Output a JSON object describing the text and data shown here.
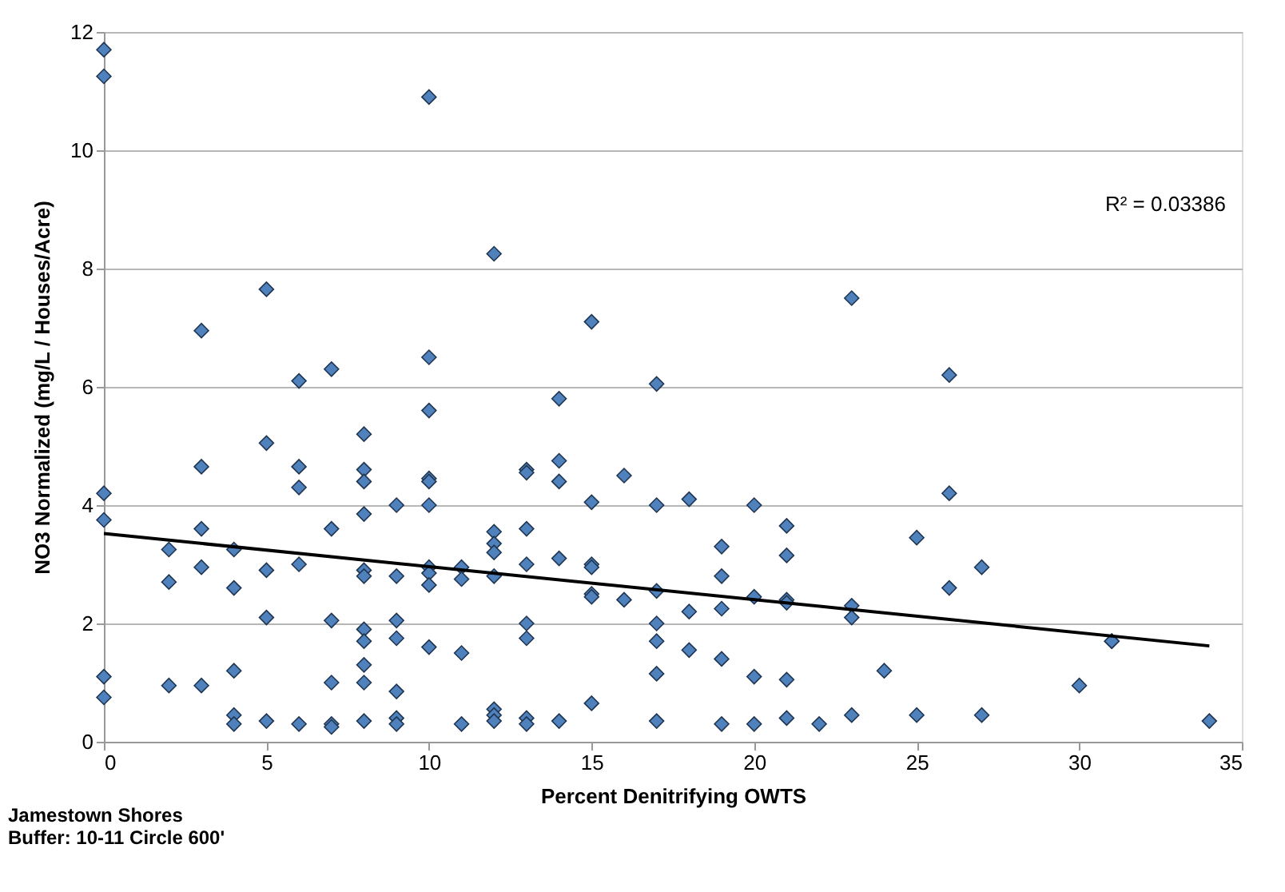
{
  "chart_data": {
    "type": "scatter",
    "xlabel": "Percent Denitrifying OWTS",
    "ylabel": "NO3 Normalized (mg/L / Houses/Acre)",
    "xlim": [
      0,
      35
    ],
    "xticks": [
      0,
      5,
      10,
      15,
      20,
      25,
      30,
      35
    ],
    "ylim": [
      0,
      12
    ],
    "yticks": [
      0,
      2,
      4,
      6,
      8,
      10,
      12
    ],
    "grid": "y",
    "legend": false,
    "annotations": [
      "R² = 0.03386",
      "Jamestown Shores",
      "Buffer: 10-11 Circle 600'"
    ],
    "series": [
      {
        "color": "#4f81bd",
        "marker": "diamond",
        "x": [
          0,
          0,
          0,
          0,
          0,
          0,
          2,
          2,
          2,
          3,
          3,
          3,
          3,
          3,
          4,
          4,
          4,
          4,
          4,
          5,
          5,
          5,
          5,
          5,
          6,
          6,
          6,
          6,
          6,
          7,
          7,
          7,
          7,
          7,
          7,
          8,
          8,
          8,
          8,
          8,
          8,
          8,
          8,
          8,
          8,
          8,
          9,
          9,
          9,
          9,
          9,
          9,
          9,
          10,
          10,
          10,
          10,
          10,
          10,
          10,
          10,
          10,
          10,
          11,
          11,
          11,
          11,
          12,
          12,
          12,
          12,
          12,
          12,
          12,
          12,
          13,
          13,
          13,
          13,
          13,
          13,
          13,
          13,
          14,
          14,
          14,
          14,
          14,
          15,
          15,
          15,
          15,
          15,
          15,
          15,
          16,
          16,
          17,
          17,
          17,
          17,
          17,
          17,
          17,
          18,
          18,
          18,
          19,
          19,
          19,
          19,
          19,
          20,
          20,
          20,
          20,
          21,
          21,
          21,
          21,
          21,
          21,
          22,
          23,
          23,
          23,
          23,
          24,
          25,
          25,
          26,
          26,
          26,
          27,
          27,
          30,
          31,
          31,
          34
        ],
        "values": [
          11.7,
          11.25,
          4.2,
          3.75,
          1.1,
          0.75,
          3.25,
          2.7,
          0.95,
          6.95,
          4.65,
          3.6,
          2.95,
          0.95,
          3.25,
          2.6,
          1.2,
          0.45,
          0.3,
          7.65,
          5.05,
          2.9,
          2.1,
          0.35,
          6.1,
          4.65,
          4.3,
          3.0,
          0.3,
          6.3,
          3.6,
          2.05,
          1.0,
          0.3,
          0.25,
          5.2,
          4.6,
          4.4,
          3.85,
          2.9,
          2.8,
          1.9,
          1.7,
          1.3,
          1.0,
          0.35,
          4.0,
          2.8,
          2.05,
          1.75,
          0.85,
          0.4,
          0.3,
          10.9,
          6.5,
          5.6,
          4.45,
          4.4,
          4.0,
          2.95,
          2.85,
          2.65,
          1.6,
          2.95,
          2.75,
          1.5,
          0.3,
          8.25,
          3.55,
          3.35,
          3.2,
          2.8,
          0.55,
          0.45,
          0.35,
          4.6,
          4.55,
          3.6,
          3.0,
          2.0,
          1.75,
          0.4,
          0.3,
          5.8,
          4.75,
          4.4,
          3.1,
          0.35,
          7.1,
          4.05,
          3.0,
          2.95,
          2.5,
          2.45,
          0.65,
          4.5,
          2.4,
          6.05,
          4.0,
          2.55,
          2.0,
          1.7,
          1.15,
          0.35,
          4.1,
          2.2,
          1.55,
          3.3,
          2.8,
          2.25,
          1.4,
          0.3,
          4.0,
          2.45,
          1.1,
          0.3,
          3.65,
          3.15,
          2.4,
          2.35,
          1.05,
          0.4,
          0.3,
          7.5,
          2.3,
          2.1,
          0.45,
          1.2,
          3.45,
          0.45,
          6.2,
          4.2,
          2.6,
          2.95,
          0.45,
          0.95,
          1.7,
          1.7,
          0.35
        ]
      },
      {
        "type": "line",
        "marker": "none",
        "color": "#000000",
        "x": [
          0,
          34
        ],
        "values": [
          3.52,
          1.62
        ]
      }
    ]
  }
}
